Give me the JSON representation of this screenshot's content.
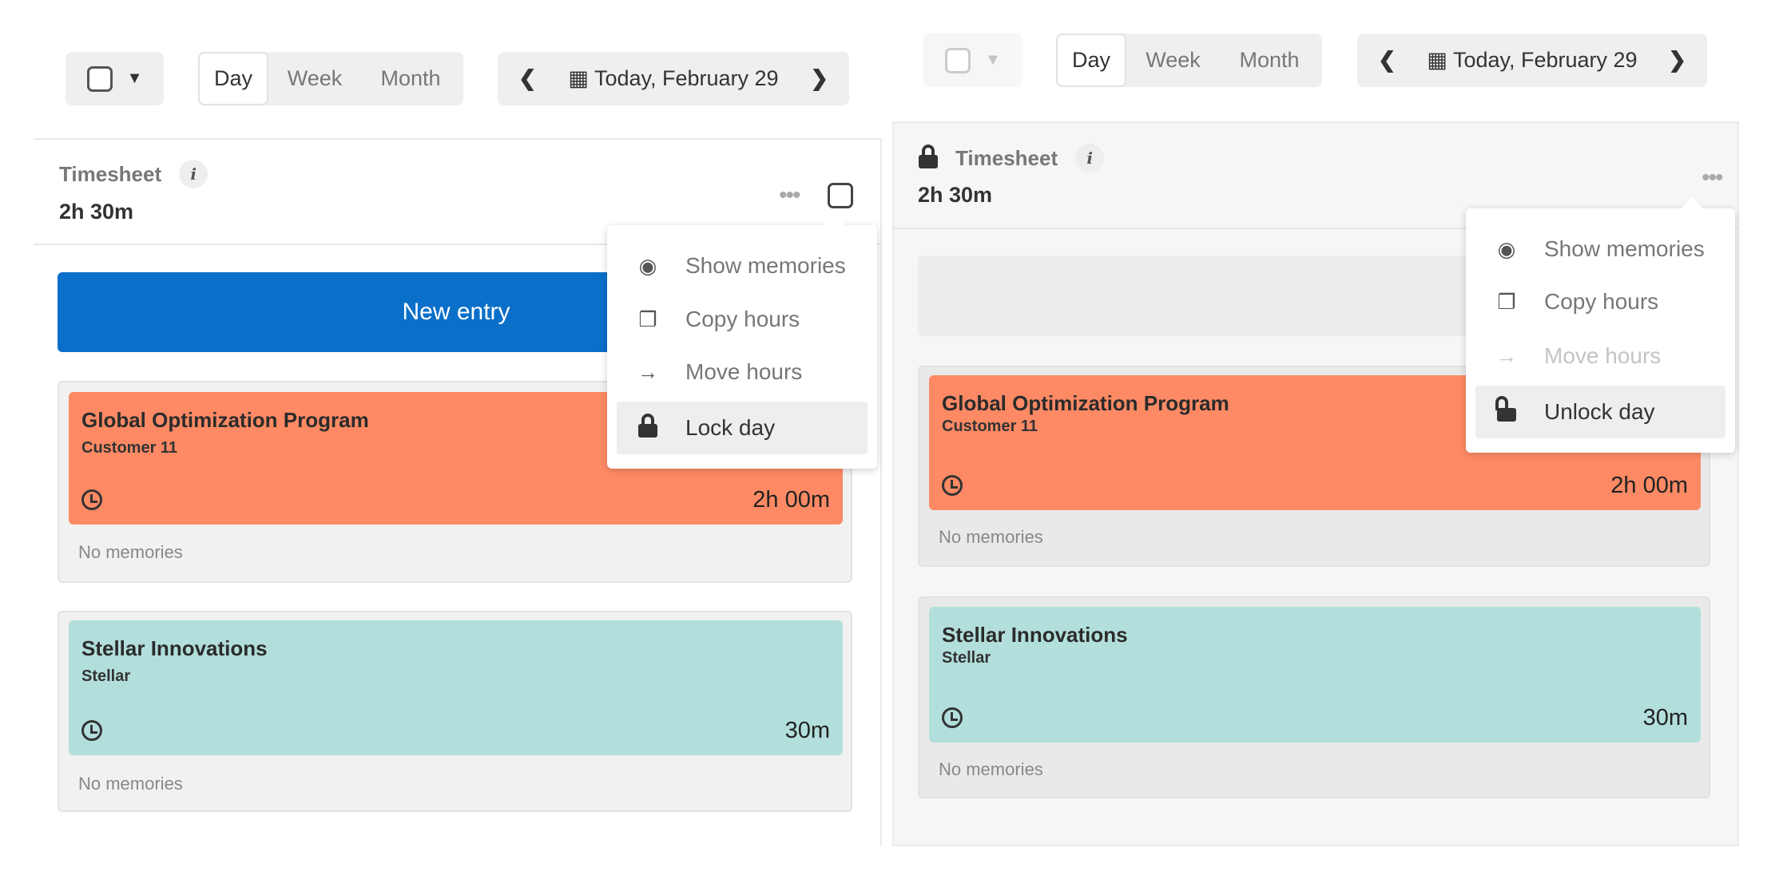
{
  "views": [
    "Day",
    "Week",
    "Month"
  ],
  "date_label": "Today, February 29",
  "timesheet": {
    "label": "Timesheet",
    "total": "2h 30m"
  },
  "left": {
    "new_entry": "New entry",
    "menu": [
      {
        "label": "Show memories",
        "icon": "eye-icon"
      },
      {
        "label": "Copy hours",
        "icon": "copy-icon"
      },
      {
        "label": "Move hours",
        "icon": "arrow-right-icon"
      },
      {
        "label": "Lock day",
        "icon": "lock-icon"
      }
    ]
  },
  "right": {
    "menu": [
      {
        "label": "Show memories",
        "icon": "eye-icon"
      },
      {
        "label": "Copy hours",
        "icon": "copy-icon"
      },
      {
        "label": "Move hours",
        "icon": "arrow-right-icon",
        "disabled": true
      },
      {
        "label": "Unlock day",
        "icon": "unlock-icon"
      }
    ]
  },
  "entries": [
    {
      "title": "Global Optimization Program",
      "customer": "Customer 11",
      "duration": "2h 00m",
      "memories": "No memories",
      "color": "#fd8a64"
    },
    {
      "title": "Stellar Innovations",
      "customer": "Stellar",
      "duration": "30m",
      "memories": "No memories",
      "color": "#b2dfdb"
    }
  ],
  "colors": {
    "primary": "#0a6fc9"
  }
}
